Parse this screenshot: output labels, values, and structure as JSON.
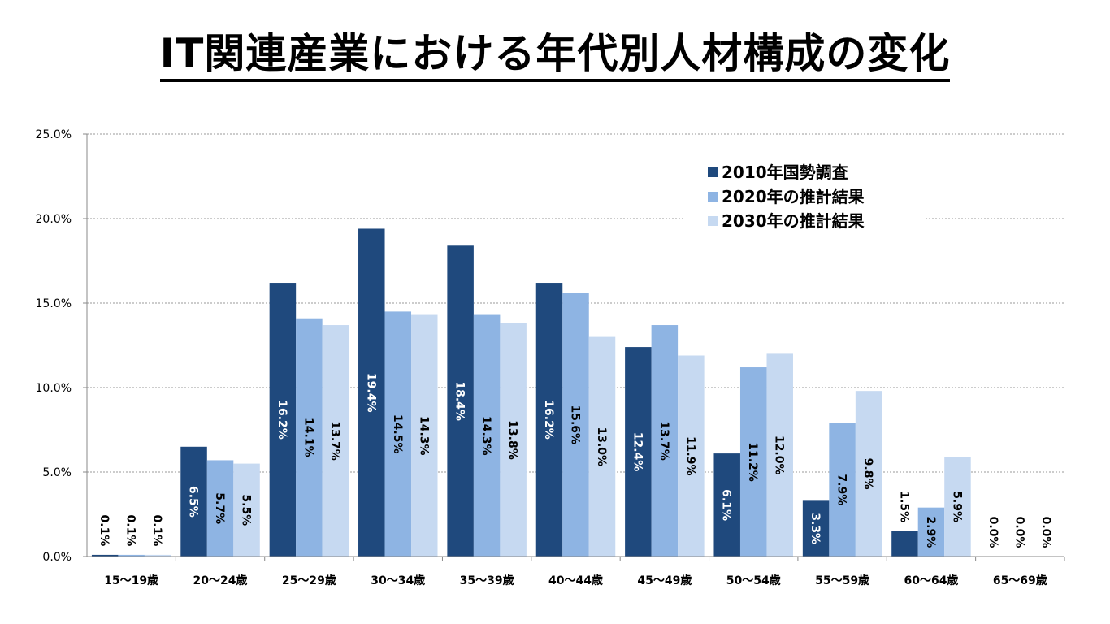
{
  "title": "IT関連産業における年代別人材構成の変化",
  "chart_data": {
    "type": "bar",
    "title": "IT関連産業における年代別人材構成の変化",
    "xlabel": "",
    "ylabel": "",
    "ylim": [
      0,
      25
    ],
    "yticks": [
      "0.0%",
      "5.0%",
      "10.0%",
      "15.0%",
      "20.0%",
      "25.0%"
    ],
    "grid": true,
    "legend_position": "top-right",
    "categories": [
      "15〜19歳",
      "20〜24歳",
      "25〜29歳",
      "30〜34歳",
      "35〜39歳",
      "40〜44歳",
      "45〜49歳",
      "50〜54歳",
      "55〜59歳",
      "60〜64歳",
      "65〜69歳"
    ],
    "series": [
      {
        "name": "2010年国勢調査",
        "color": "#1F497D",
        "label_color": "#FFFFFF",
        "values": [
          0.1,
          6.5,
          16.2,
          19.4,
          18.4,
          16.2,
          12.4,
          6.1,
          3.3,
          1.5,
          0.0
        ]
      },
      {
        "name": "2020年の推計結果",
        "color": "#8EB4E3",
        "label_color": "#000000",
        "values": [
          0.1,
          5.7,
          14.1,
          14.5,
          14.3,
          15.6,
          13.7,
          11.2,
          7.9,
          2.9,
          0.0
        ]
      },
      {
        "name": "2030年の推計結果",
        "color": "#C6D9F1",
        "label_color": "#000000",
        "values": [
          0.1,
          5.5,
          13.7,
          14.3,
          13.8,
          13.0,
          11.9,
          12.0,
          9.8,
          5.9,
          0.0
        ]
      }
    ]
  }
}
